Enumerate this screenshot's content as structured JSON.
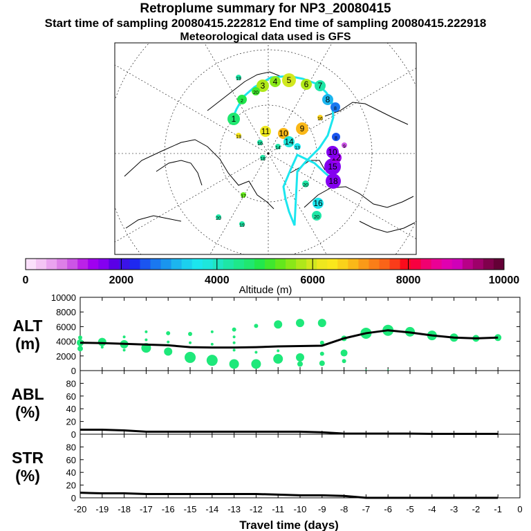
{
  "header": {
    "title": "Retroplume summary for NP3_20080415",
    "sampling": "Start time of sampling 20080415.222812     End time of sampling 20080415.222918",
    "met": "Meteorological data used is GFS"
  },
  "map": {
    "trajectory_labels": [
      "1",
      "2",
      "3",
      "4",
      "5",
      "6",
      "7",
      "8",
      "9",
      "10",
      "11",
      "12",
      "13",
      "14",
      "15",
      "16",
      "17",
      "18",
      "19",
      "20"
    ]
  },
  "colorbar": {
    "xlabel": "Altitude (m)",
    "ticks": [
      "0",
      "2000",
      "4000",
      "6000",
      "8000",
      "10000"
    ],
    "colors": [
      "#fbe0fb",
      "#f4c4f4",
      "#eaa3ef",
      "#dd7fe8",
      "#cc55e6",
      "#bb22e8",
      "#a000f0",
      "#8400f0",
      "#5a00e6",
      "#3b13e8",
      "#1f28f0",
      "#1b55f0",
      "#1a78f0",
      "#1a95ee",
      "#1cb5ee",
      "#1cd0ee",
      "#1ce6ee",
      "#1ee6dc",
      "#1fe6c2",
      "#1ee6a6",
      "#1ee88a",
      "#20e870",
      "#22e84c",
      "#40e82e",
      "#64e81c",
      "#8ae818",
      "#b0e81a",
      "#d2e81e",
      "#eee81e",
      "#fae81c",
      "#fad21a",
      "#fab818",
      "#fa9a18",
      "#fa7e18",
      "#fa6418",
      "#fa3c1a",
      "#fa0c1c",
      "#f80040",
      "#f00070",
      "#ea0095",
      "#e000b0",
      "#d000b8",
      "#b80088",
      "#9e006a",
      "#80004c",
      "#640036"
    ]
  },
  "chart_data": [
    {
      "type": "scatter",
      "name": "ALT",
      "ylabel": "ALT\n(m)",
      "ylabel_lines": [
        "ALT",
        "(m)"
      ],
      "xlim": [
        -20,
        0
      ],
      "ylim": [
        0,
        10000
      ],
      "yticks": [
        "0",
        "2000",
        "4000",
        "6000",
        "8000",
        "10000"
      ],
      "line": {
        "x": [
          -20,
          -19,
          -18,
          -17,
          -16,
          -15,
          -14,
          -13,
          -12,
          -11,
          -10,
          -9,
          -8,
          -7,
          -6,
          -5,
          -4,
          -3,
          -2,
          -1
        ],
        "y": [
          3800,
          3750,
          3650,
          3550,
          3450,
          3200,
          3150,
          3150,
          3200,
          3300,
          3350,
          3400,
          4400,
          5100,
          5500,
          5200,
          4800,
          4500,
          4400,
          4500
        ]
      },
      "points": [
        {
          "x": -20,
          "y": 4500,
          "s": 3
        },
        {
          "x": -20,
          "y": 3800,
          "s": 5
        },
        {
          "x": -20,
          "y": 3000,
          "s": 4
        },
        {
          "x": -19,
          "y": 3900,
          "s": 6
        },
        {
          "x": -19,
          "y": 3200,
          "s": 2
        },
        {
          "x": -18,
          "y": 4600,
          "s": 2
        },
        {
          "x": -18,
          "y": 3600,
          "s": 6
        },
        {
          "x": -18,
          "y": 2800,
          "s": 2
        },
        {
          "x": -17,
          "y": 5300,
          "s": 2
        },
        {
          "x": -17,
          "y": 4200,
          "s": 2
        },
        {
          "x": -17,
          "y": 3100,
          "s": 7
        },
        {
          "x": -16,
          "y": 5100,
          "s": 3
        },
        {
          "x": -16,
          "y": 3900,
          "s": 2
        },
        {
          "x": -16,
          "y": 2600,
          "s": 6
        },
        {
          "x": -15,
          "y": 5000,
          "s": 3
        },
        {
          "x": -15,
          "y": 3800,
          "s": 2
        },
        {
          "x": -15,
          "y": 1800,
          "s": 8
        },
        {
          "x": -14,
          "y": 5300,
          "s": 2
        },
        {
          "x": -14,
          "y": 3600,
          "s": 2
        },
        {
          "x": -14,
          "y": 1400,
          "s": 8
        },
        {
          "x": -13,
          "y": 5600,
          "s": 3
        },
        {
          "x": -13,
          "y": 4600,
          "s": 2
        },
        {
          "x": -13,
          "y": 3800,
          "s": 2
        },
        {
          "x": -13,
          "y": 2800,
          "s": 2
        },
        {
          "x": -13,
          "y": 900,
          "s": 7
        },
        {
          "x": -12,
          "y": 6100,
          "s": 3
        },
        {
          "x": -12,
          "y": 2500,
          "s": 2
        },
        {
          "x": -12,
          "y": 900,
          "s": 7
        },
        {
          "x": -11,
          "y": 6300,
          "s": 6
        },
        {
          "x": -11,
          "y": 2700,
          "s": 2
        },
        {
          "x": -11,
          "y": 1600,
          "s": 7
        },
        {
          "x": -10,
          "y": 6500,
          "s": 6
        },
        {
          "x": -10,
          "y": 1800,
          "s": 6
        },
        {
          "x": -10,
          "y": 900,
          "s": 4
        },
        {
          "x": -9,
          "y": 6500,
          "s": 6
        },
        {
          "x": -9,
          "y": 3800,
          "s": 3
        },
        {
          "x": -9,
          "y": 2300,
          "s": 3
        },
        {
          "x": -9,
          "y": 1000,
          "s": 4
        },
        {
          "x": -8,
          "y": 4400,
          "s": 4
        },
        {
          "x": -8,
          "y": 2400,
          "s": 5
        },
        {
          "x": -8,
          "y": 1300,
          "s": 3
        },
        {
          "x": -7,
          "y": 5100,
          "s": 8
        },
        {
          "x": -7,
          "y": 100,
          "s": 1
        },
        {
          "x": -6,
          "y": 5500,
          "s": 8
        },
        {
          "x": -6,
          "y": 100,
          "s": 1
        },
        {
          "x": -5,
          "y": 5300,
          "s": 7
        },
        {
          "x": -4,
          "y": 4800,
          "s": 7
        },
        {
          "x": -3,
          "y": 4500,
          "s": 6
        },
        {
          "x": -2,
          "y": 4400,
          "s": 5
        },
        {
          "x": -1,
          "y": 4500,
          "s": 5
        }
      ]
    },
    {
      "type": "line",
      "name": "ABL",
      "ylabel_lines": [
        "ABL",
        "(%)"
      ],
      "xlim": [
        -20,
        0
      ],
      "ylim": [
        0,
        100
      ],
      "yticks": [
        "0",
        "20",
        "40",
        "60",
        "80"
      ],
      "x": [
        -20,
        -19,
        -18,
        -17,
        -16,
        -15,
        -14,
        -13,
        -12,
        -11,
        -10,
        -9,
        -8,
        -7,
        -6,
        -5,
        -4,
        -3,
        -2,
        -1
      ],
      "y": [
        7,
        7,
        6,
        4,
        4,
        4,
        4,
        4,
        4,
        4,
        4,
        3,
        1,
        1,
        1,
        1,
        0.5,
        0.5,
        0.5,
        0.5
      ]
    },
    {
      "type": "line",
      "name": "STR",
      "ylabel_lines": [
        "STR",
        "(%)"
      ],
      "xlim": [
        -20,
        0
      ],
      "ylim": [
        0,
        100
      ],
      "yticks": [
        "0",
        "20",
        "40",
        "60",
        "80"
      ],
      "x": [
        -20,
        -19,
        -18,
        -17,
        -16,
        -15,
        -14,
        -13,
        -12,
        -11,
        -10,
        -9,
        -8,
        -7,
        -6,
        -5,
        -4,
        -3,
        -2,
        -1
      ],
      "y": [
        8,
        7,
        7,
        6,
        6,
        6,
        6,
        6,
        6,
        5,
        4,
        4,
        3,
        0,
        0,
        0,
        0,
        0,
        0,
        0
      ],
      "xlabel": "Travel time (days)",
      "xticks": [
        "-20",
        "-19",
        "-18",
        "-17",
        "-16",
        "-15",
        "-14",
        "-13",
        "-12",
        "-11",
        "-10",
        "-9",
        "-8",
        "-7",
        "-6",
        "-5",
        "-4",
        "-3",
        "-2",
        "-1",
        "0"
      ]
    }
  ]
}
